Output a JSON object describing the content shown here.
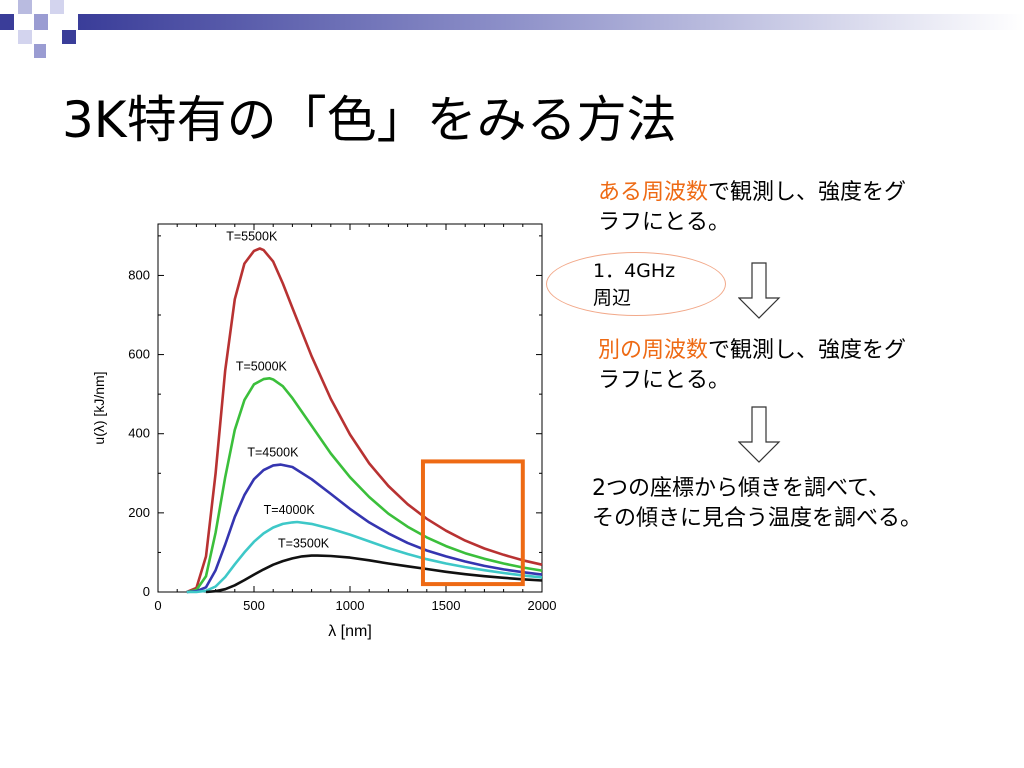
{
  "slide": {
    "title": "3K特有の「色」をみる方法",
    "colors": {
      "accent": "#ee6a14",
      "deco_blue": "#3a3d99"
    }
  },
  "steps": {
    "step1_highlight": "ある周波数",
    "step1_rest": "で観測し、強度をグ",
    "step1_line2": "ラフにとる。",
    "ellipse_line1": "1．4GHz",
    "ellipse_line2": "周辺",
    "step2_highlight": "別の周波数",
    "step2_rest": "で観測し、強度をグ",
    "step2_line2": "ラフにとる。",
    "step3_line1": "2つの座標から傾きを調べて、",
    "step3_line2": "その傾きに見合う温度を調べる。"
  },
  "chart_data": {
    "type": "line",
    "xlabel": "λ [nm]",
    "ylabel": "u(λ) [kJ/nm]",
    "xlim": [
      0,
      2000
    ],
    "ylim": [
      0,
      930
    ],
    "xticks": [
      0,
      500,
      1000,
      1500,
      2000
    ],
    "yticks": [
      0,
      200,
      400,
      600,
      800
    ],
    "highlight_box": {
      "x": [
        1380,
        1900
      ],
      "y": [
        20,
        330
      ],
      "color": "#ee6a14"
    },
    "series": [
      {
        "name": "T=5500K",
        "color": "#b83232",
        "x": [
          150,
          200,
          250,
          300,
          350,
          400,
          450,
          500,
          530,
          550,
          600,
          650,
          700,
          800,
          900,
          1000,
          1100,
          1200,
          1300,
          1400,
          1500,
          1600,
          1700,
          1800,
          1900,
          2000
        ],
        "y": [
          0,
          10,
          90,
          300,
          560,
          740,
          830,
          862,
          868,
          864,
          835,
          780,
          718,
          596,
          488,
          398,
          325,
          268,
          222,
          185,
          155,
          130,
          110,
          94,
          80,
          69
        ]
      },
      {
        "name": "T=5000K",
        "color": "#3bbf3b",
        "x": [
          150,
          200,
          250,
          300,
          350,
          400,
          450,
          500,
          550,
          580,
          600,
          650,
          700,
          800,
          900,
          1000,
          1100,
          1200,
          1300,
          1400,
          1500,
          1600,
          1700,
          1800,
          1900,
          2000
        ],
        "y": [
          0,
          5,
          40,
          150,
          290,
          410,
          485,
          525,
          538,
          540,
          537,
          520,
          490,
          420,
          350,
          290,
          240,
          198,
          165,
          138,
          116,
          98,
          84,
          72,
          62,
          54
        ]
      },
      {
        "name": "T=4500K",
        "color": "#3535b0",
        "x": [
          150,
          200,
          250,
          300,
          350,
          400,
          450,
          500,
          550,
          600,
          640,
          700,
          800,
          900,
          1000,
          1100,
          1200,
          1300,
          1400,
          1500,
          1600,
          1700,
          1800,
          1900,
          2000
        ],
        "y": [
          0,
          2,
          12,
          55,
          120,
          190,
          245,
          285,
          308,
          320,
          322,
          316,
          285,
          248,
          210,
          176,
          148,
          124,
          105,
          90,
          77,
          66,
          57,
          50,
          44
        ]
      },
      {
        "name": "T=4000K",
        "color": "#3ec8c8",
        "x": [
          150,
          200,
          250,
          300,
          350,
          400,
          450,
          500,
          550,
          600,
          650,
          700,
          725,
          800,
          900,
          1000,
          1100,
          1200,
          1300,
          1400,
          1500,
          1600,
          1700,
          1800,
          1900,
          2000
        ],
        "y": [
          0,
          0,
          3,
          14,
          38,
          70,
          100,
          127,
          148,
          163,
          172,
          176,
          177,
          172,
          160,
          145,
          128,
          111,
          96,
          83,
          72,
          63,
          55,
          48,
          42,
          37
        ]
      },
      {
        "name": "T=3500K",
        "color": "#111111",
        "x": [
          250,
          300,
          350,
          400,
          450,
          500,
          550,
          600,
          650,
          700,
          750,
          800,
          830,
          900,
          1000,
          1100,
          1200,
          1300,
          1400,
          1500,
          1600,
          1700,
          1800,
          1900,
          2000
        ],
        "y": [
          0,
          2,
          7,
          17,
          30,
          44,
          57,
          69,
          78,
          85,
          90,
          92,
          92,
          91,
          87,
          80,
          72,
          65,
          58,
          51,
          45,
          40,
          36,
          32,
          29
        ]
      }
    ]
  }
}
